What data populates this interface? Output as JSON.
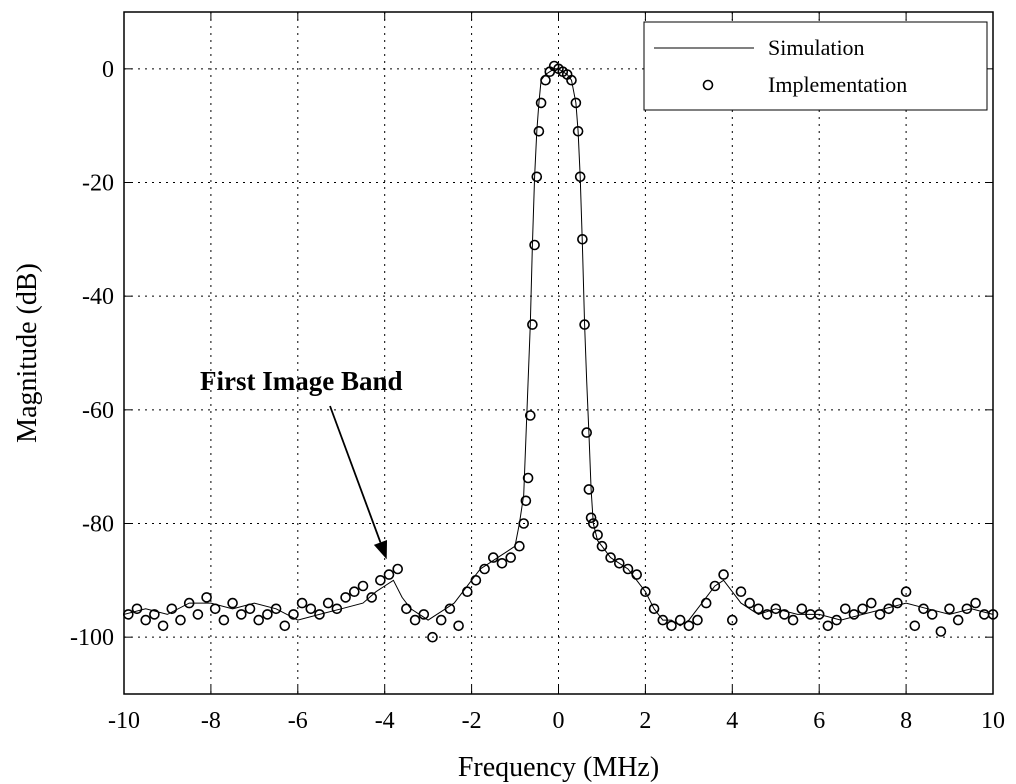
{
  "chart_data": {
    "type": "line",
    "title": "",
    "xlabel": "Frequency (MHz)",
    "ylabel": "Magnitude (dB)",
    "xlim": [
      -10,
      10
    ],
    "ylim": [
      -110,
      10
    ],
    "xticks": [
      -10,
      -8,
      -6,
      -4,
      -2,
      0,
      2,
      4,
      6,
      8,
      10
    ],
    "yticks": [
      0,
      -20,
      -40,
      -60,
      -80,
      -100
    ],
    "grid": true,
    "legend_position": "top-right",
    "series": [
      {
        "name": "Simulation",
        "style": "line",
        "x": [
          -10,
          -9.5,
          -9,
          -8.5,
          -8,
          -7.5,
          -7,
          -6.5,
          -6,
          -5.5,
          -5,
          -4.5,
          -4.2,
          -4,
          -3.8,
          -3.6,
          -3.4,
          -3.2,
          -3,
          -2.8,
          -2.6,
          -2.4,
          -2.2,
          -2,
          -1.8,
          -1.6,
          -1.4,
          -1.2,
          -1,
          -0.9,
          -0.8,
          -0.75,
          -0.7,
          -0.65,
          -0.6,
          -0.55,
          -0.5,
          -0.45,
          -0.4,
          -0.3,
          -0.2,
          -0.1,
          0,
          0.1,
          0.2,
          0.3,
          0.4,
          0.45,
          0.5,
          0.55,
          0.6,
          0.65,
          0.7,
          0.75,
          0.8,
          0.9,
          1,
          1.2,
          1.4,
          1.6,
          1.8,
          2,
          2.2,
          2.4,
          2.6,
          2.8,
          3,
          3.2,
          3.4,
          3.6,
          3.8,
          4,
          4.2,
          4.4,
          4.6,
          5,
          5.5,
          6,
          6.5,
          7,
          7.5,
          8,
          8.5,
          9,
          9.5,
          10
        ],
        "y": [
          -96,
          -95,
          -96,
          -94,
          -94,
          -95,
          -94,
          -95,
          -97,
          -96,
          -95,
          -94,
          -92,
          -91,
          -90,
          -93,
          -95,
          -96,
          -97,
          -96,
          -95,
          -94,
          -92,
          -90,
          -88,
          -87,
          -86,
          -85,
          -84,
          -80,
          -75,
          -65,
          -55,
          -45,
          -31,
          -19,
          -11,
          -6,
          -2,
          -1,
          -0.5,
          0,
          0,
          -0.5,
          -1,
          -2,
          -6,
          -11,
          -19,
          -31,
          -45,
          -55,
          -64,
          -74,
          -80,
          -83,
          -84,
          -86,
          -87,
          -88,
          -90,
          -92,
          -95,
          -97,
          -97,
          -98,
          -97,
          -95,
          -93,
          -91,
          -90,
          -92,
          -94,
          -95,
          -96,
          -95,
          -96,
          -96,
          -97,
          -96,
          -95,
          -94,
          -95,
          -96,
          -95,
          -96
        ]
      },
      {
        "name": "Implementation",
        "style": "markers-circle",
        "x": [
          -9.9,
          -9.7,
          -9.5,
          -9.3,
          -9.1,
          -8.9,
          -8.7,
          -8.5,
          -8.3,
          -8.1,
          -7.9,
          -7.7,
          -7.5,
          -7.3,
          -7.1,
          -6.9,
          -6.7,
          -6.5,
          -6.3,
          -6.1,
          -5.9,
          -5.7,
          -5.5,
          -5.3,
          -5.1,
          -4.9,
          -4.7,
          -4.5,
          -4.3,
          -4.1,
          -3.9,
          -3.7,
          -3.5,
          -3.3,
          -3.1,
          -2.9,
          -2.7,
          -2.5,
          -2.3,
          -2.1,
          -1.9,
          -1.7,
          -1.5,
          -1.3,
          -1.1,
          -0.9,
          -0.8,
          -0.75,
          -0.7,
          -0.65,
          -0.6,
          -0.55,
          -0.5,
          -0.45,
          -0.4,
          -0.3,
          -0.2,
          -0.1,
          0,
          0.1,
          0.2,
          0.3,
          0.4,
          0.45,
          0.5,
          0.55,
          0.6,
          0.65,
          0.7,
          0.75,
          0.8,
          0.9,
          1,
          1.2,
          1.4,
          1.6,
          1.8,
          2,
          2.2,
          2.4,
          2.6,
          2.8,
          3,
          3.2,
          3.4,
          3.6,
          3.8,
          4,
          4.2,
          4.4,
          4.6,
          4.8,
          5,
          5.2,
          5.4,
          5.6,
          5.8,
          6,
          6.2,
          6.4,
          6.6,
          6.8,
          7,
          7.2,
          7.4,
          7.6,
          7.8,
          8,
          8.2,
          8.4,
          8.6,
          8.8,
          9,
          9.2,
          9.4,
          9.6,
          9.8,
          10
        ],
        "y": [
          -96,
          -95,
          -97,
          -96,
          -98,
          -95,
          -97,
          -94,
          -96,
          -93,
          -95,
          -97,
          -94,
          -96,
          -95,
          -97,
          -96,
          -95,
          -98,
          -96,
          -94,
          -95,
          -96,
          -94,
          -95,
          -93,
          -92,
          -91,
          -93,
          -90,
          -89,
          -88,
          -95,
          -97,
          -96,
          -100,
          -97,
          -95,
          -98,
          -92,
          -90,
          -88,
          -86,
          -87,
          -86,
          -84,
          -80,
          -76,
          -72,
          -61,
          -45,
          -31,
          -19,
          -11,
          -6,
          -2,
          -0.5,
          0.5,
          0,
          -0.5,
          -1,
          -2,
          -6,
          -11,
          -19,
          -30,
          -45,
          -64,
          -74,
          -79,
          -80,
          -82,
          -84,
          -86,
          -87,
          -88,
          -89,
          -92,
          -95,
          -97,
          -98,
          -97,
          -98,
          -97,
          -94,
          -91,
          -89,
          -97,
          -92,
          -94,
          -95,
          -96,
          -95,
          -96,
          -97,
          -95,
          -96,
          -96,
          -98,
          -97,
          -95,
          -96,
          -95,
          -94,
          -96,
          -95,
          -94,
          -92,
          -98,
          -95,
          -96,
          -99,
          -95,
          -97,
          -95,
          -94,
          -96,
          -96
        ]
      }
    ],
    "annotations": [
      {
        "text": "First Image Band",
        "points_to": {
          "x": -4,
          "y": -87
        }
      }
    ]
  }
}
